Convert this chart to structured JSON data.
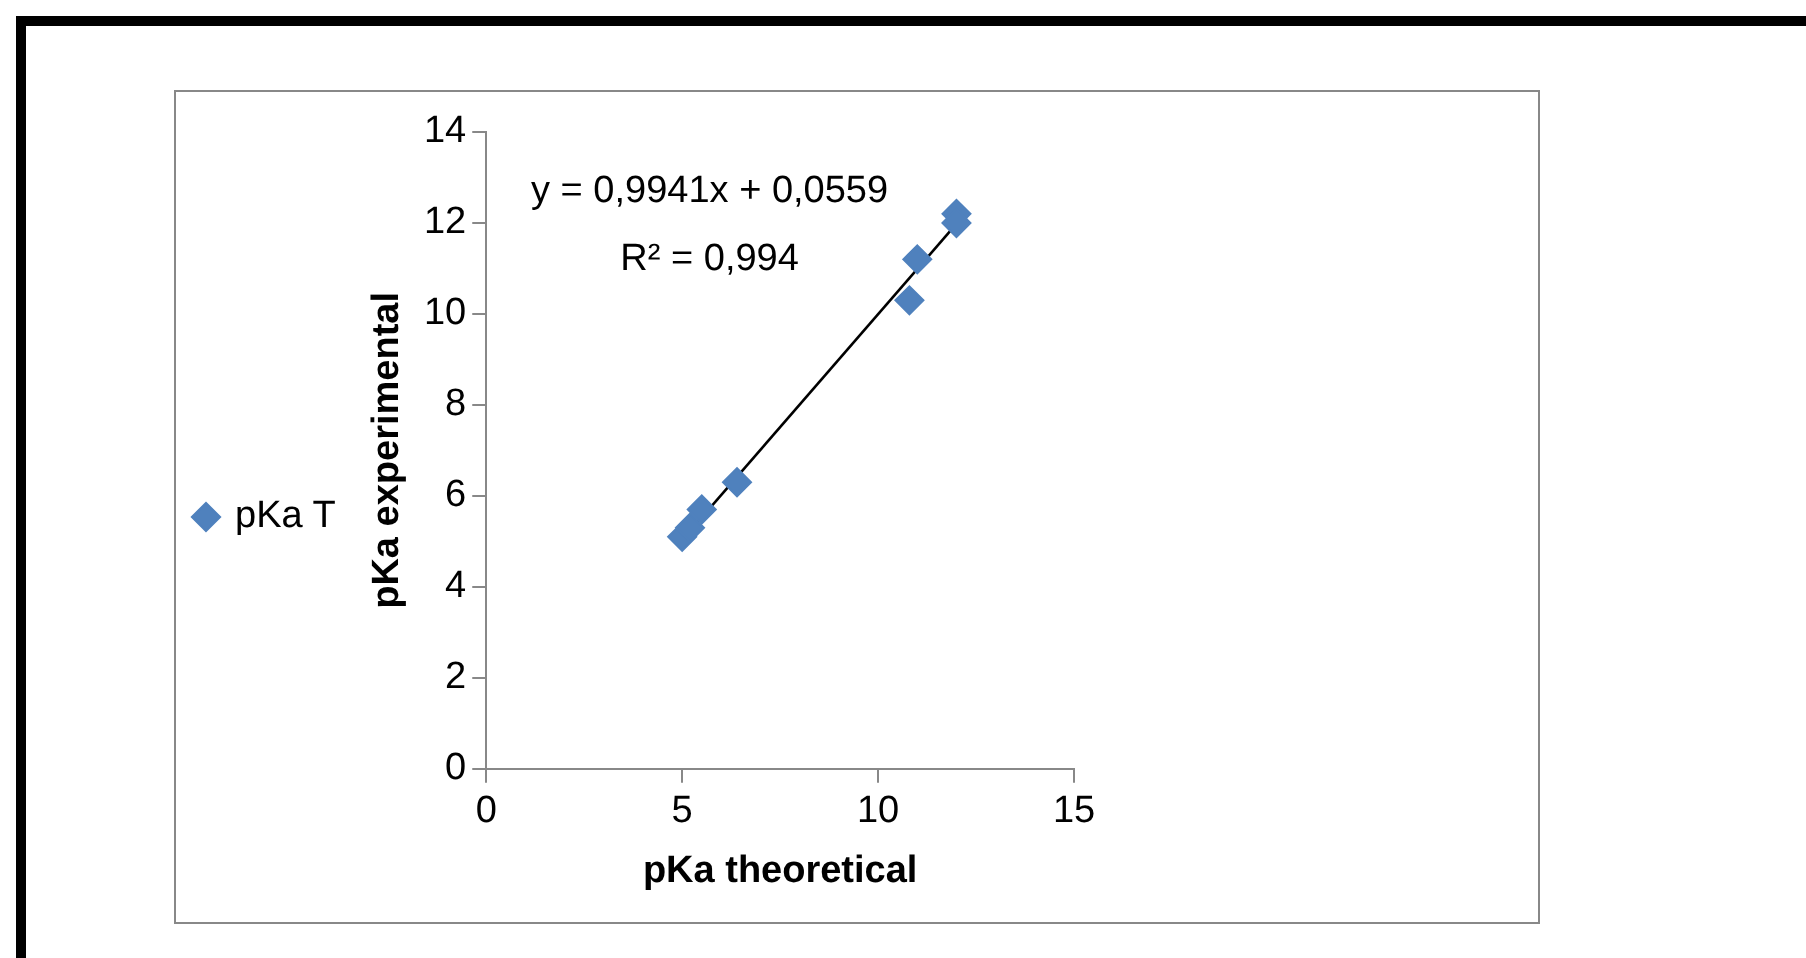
{
  "chart_data": {
    "type": "scatter",
    "xlabel": "pKa theoretical",
    "ylabel": "pKa experimental",
    "annotations": [
      "y = 0,9941x + 0,0559",
      "R² = 0,994"
    ],
    "series": [
      {
        "name": "pKa T",
        "marker": "diamond",
        "color": "#4f81bd",
        "x": [
          5.0,
          5.2,
          5.5,
          6.4,
          10.8,
          11.0,
          12.0,
          12.0
        ],
        "values": [
          5.1,
          5.3,
          5.7,
          6.3,
          10.3,
          11.2,
          12.2,
          12.0
        ]
      },
      {
        "type": "line",
        "color": "#000000",
        "x": [
          5.04,
          12.02
        ],
        "values": [
          5.07,
          12.0
        ]
      }
    ],
    "xlim": [
      0,
      15
    ],
    "xticks": [
      0,
      5,
      10,
      15
    ],
    "ylim": [
      0,
      14
    ],
    "yticks": [
      0,
      2,
      4,
      6,
      8,
      10,
      12,
      14
    ],
    "grid": false,
    "legend": "left"
  }
}
